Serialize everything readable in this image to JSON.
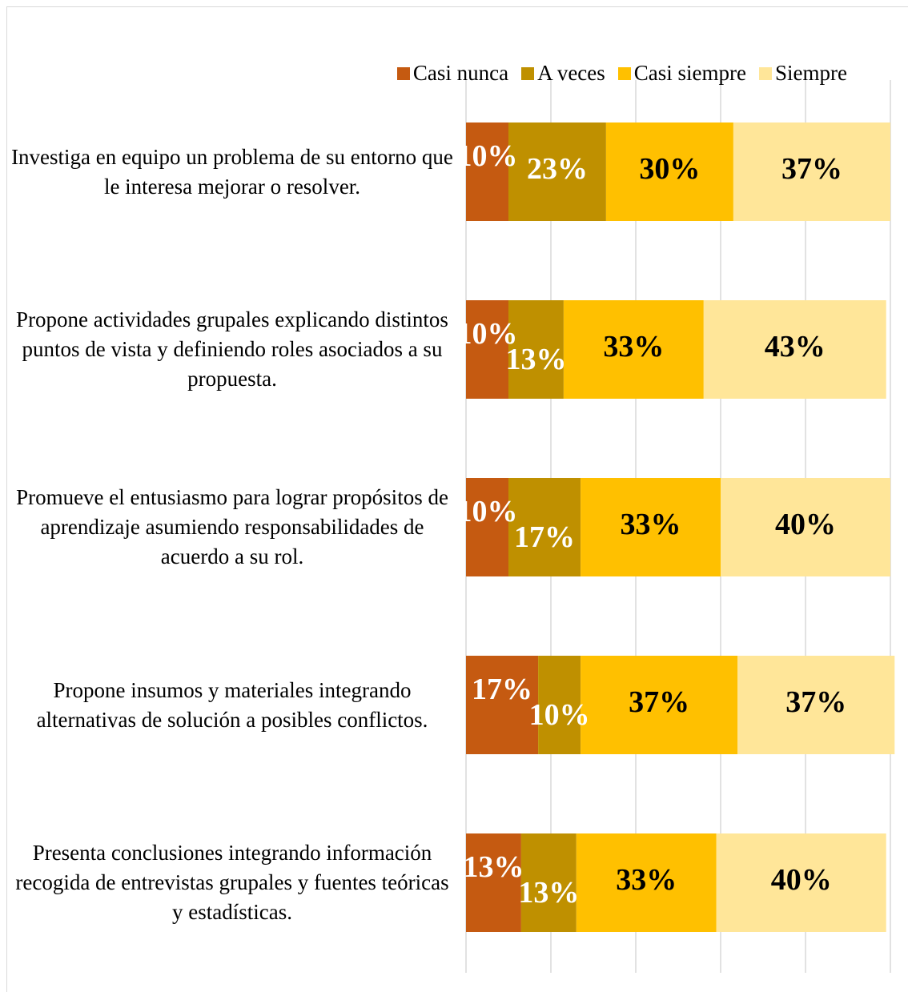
{
  "chart_data": {
    "type": "stacked_bar_horizontal",
    "categories": [
      "Investiga en equipo un problema de su entorno que le interesa mejorar o resolver.",
      "Propone actividades grupales explicando distintos puntos de vista y definiendo roles asociados a su propuesta.",
      "Promueve el entusiasmo para lograr propósitos de aprendizaje asumiendo responsabilidades de acuerdo a su rol.",
      "Propone insumos y materiales integrando alternativas de solución a posibles conflictos.",
      "Presenta conclusiones integrando información recogida de entrevistas grupales y fuentes teóricas y estadísticas."
    ],
    "series": [
      {
        "name": "Casi nunca",
        "color": "#c55a11",
        "values": [
          10,
          10,
          10,
          17,
          13
        ],
        "value_labels": [
          "10%",
          "10%",
          "10%",
          "17%",
          "13%"
        ]
      },
      {
        "name": "A veces",
        "color": "#bf9000",
        "values": [
          23,
          13,
          17,
          10,
          13
        ],
        "value_labels": [
          "23%",
          "13%",
          "17%",
          "10%",
          "13%"
        ]
      },
      {
        "name": "Casi siempre",
        "color": "#ffc000",
        "values": [
          30,
          33,
          33,
          37,
          33
        ],
        "value_labels": [
          "30%",
          "33%",
          "33%",
          "37%",
          "33%"
        ]
      },
      {
        "name": "Siempre",
        "color": "#ffe699",
        "values": [
          37,
          43,
          40,
          37,
          40
        ],
        "value_labels": [
          "37%",
          "43%",
          "40%",
          "37%",
          "40%"
        ]
      }
    ],
    "xlim": [
      0,
      100
    ],
    "xticks": [
      0,
      20,
      40,
      60,
      80,
      100
    ],
    "grid": true,
    "legend": "top"
  }
}
